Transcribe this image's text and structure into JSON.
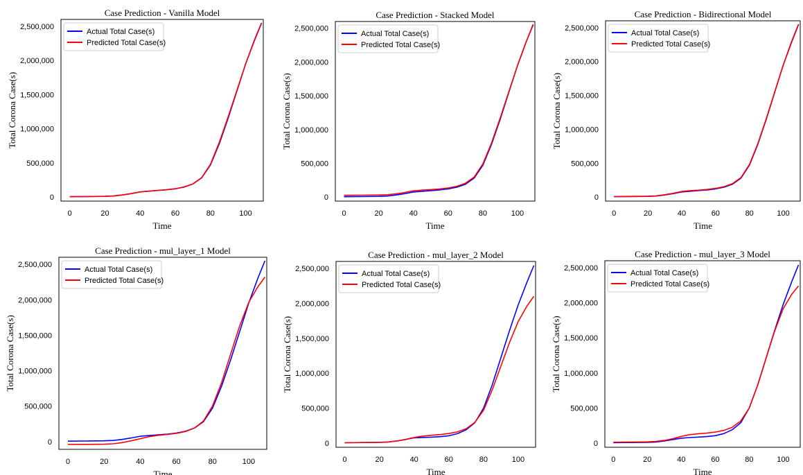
{
  "chart_data": [
    {
      "type": "line",
      "title": "Case Prediction - Vanilla Model",
      "xlabel": "Time",
      "ylabel": "Total Corona Case(s)",
      "xlim": [
        -5,
        110
      ],
      "ylim": [
        -60000,
        2600000
      ],
      "x_ticks": [
        0,
        20,
        40,
        60,
        80,
        100
      ],
      "y_ticks": [
        0,
        500000,
        1000000,
        1500000,
        2000000,
        2500000
      ],
      "y_tick_labels": [
        "0",
        "500,000",
        "1,000,000",
        "1,500,000",
        "2,000,000",
        "2,500,000"
      ],
      "x": [
        0,
        10,
        20,
        25,
        30,
        35,
        40,
        45,
        50,
        55,
        60,
        65,
        70,
        75,
        80,
        85,
        90,
        95,
        100,
        105,
        109
      ],
      "series": [
        {
          "name": "Actual Total Case(s)",
          "color": "#0000ff",
          "values": [
            5000,
            7000,
            10000,
            15000,
            30000,
            50000,
            75000,
            85000,
            95000,
            105000,
            120000,
            145000,
            190000,
            280000,
            470000,
            780000,
            1150000,
            1550000,
            1950000,
            2300000,
            2550000
          ]
        },
        {
          "name": "Predicted Total Case(s)",
          "color": "#ff0000",
          "values": [
            4000,
            6000,
            9000,
            14000,
            29000,
            50000,
            74000,
            86000,
            96000,
            106000,
            122000,
            148000,
            192000,
            283000,
            480000,
            800000,
            1170000,
            1560000,
            1950000,
            2290000,
            2545000
          ]
        }
      ],
      "legend": "top-left",
      "grid": false
    },
    {
      "type": "line",
      "title": "Case Prediction - Stacked Model",
      "xlabel": "Time",
      "ylabel": "Total Corona Case(s)",
      "xlim": [
        -5,
        110
      ],
      "ylim": [
        -60000,
        2600000
      ],
      "x_ticks": [
        0,
        20,
        40,
        60,
        80,
        100
      ],
      "y_ticks": [
        0,
        500000,
        1000000,
        1500000,
        2000000,
        2500000
      ],
      "y_tick_labels": [
        "0",
        "500,000",
        "1,000,000",
        "1,500,000",
        "2,000,000",
        "2,500,000"
      ],
      "x": [
        0,
        10,
        20,
        25,
        30,
        35,
        40,
        45,
        50,
        55,
        60,
        65,
        70,
        75,
        80,
        85,
        90,
        95,
        100,
        105,
        109
      ],
      "series": [
        {
          "name": "Actual Total Case(s)",
          "color": "#0000ff",
          "values": [
            5000,
            7000,
            10000,
            15000,
            30000,
            50000,
            75000,
            85000,
            95000,
            105000,
            120000,
            145000,
            190000,
            280000,
            470000,
            780000,
            1150000,
            1550000,
            1950000,
            2300000,
            2550000
          ]
        },
        {
          "name": "Predicted Total Case(s)",
          "color": "#ff0000",
          "values": [
            25000,
            27000,
            30000,
            35000,
            48000,
            68000,
            92000,
            102000,
            110000,
            120000,
            135000,
            160000,
            205000,
            295000,
            490000,
            800000,
            1170000,
            1560000,
            1950000,
            2300000,
            2560000
          ]
        }
      ],
      "legend": "top-left",
      "grid": false
    },
    {
      "type": "line",
      "title": "Case Prediction - Bidirectional Model",
      "xlabel": "Time",
      "ylabel": "Total Corona Case(s)",
      "xlim": [
        -5,
        110
      ],
      "ylim": [
        -60000,
        2600000
      ],
      "x_ticks": [
        0,
        20,
        40,
        60,
        80,
        100
      ],
      "y_ticks": [
        0,
        500000,
        1000000,
        1500000,
        2000000,
        2500000
      ],
      "y_tick_labels": [
        "0",
        "500,000",
        "1,000,000",
        "1,500,000",
        "2,000,000",
        "2,500,000"
      ],
      "x": [
        0,
        10,
        20,
        25,
        30,
        35,
        40,
        45,
        50,
        55,
        60,
        65,
        70,
        75,
        80,
        85,
        90,
        95,
        100,
        105,
        109
      ],
      "series": [
        {
          "name": "Actual Total Case(s)",
          "color": "#0000ff",
          "values": [
            5000,
            7000,
            10000,
            15000,
            30000,
            50000,
            75000,
            85000,
            95000,
            105000,
            120000,
            145000,
            190000,
            280000,
            470000,
            780000,
            1150000,
            1550000,
            1950000,
            2300000,
            2550000
          ]
        },
        {
          "name": "Predicted Total Case(s)",
          "color": "#ff0000",
          "values": [
            8000,
            10000,
            13000,
            18000,
            34000,
            56000,
            82000,
            94000,
            102000,
            112000,
            128000,
            153000,
            198000,
            288000,
            480000,
            790000,
            1160000,
            1555000,
            1950000,
            2290000,
            2545000
          ]
        }
      ],
      "legend": "top-left",
      "grid": false
    },
    {
      "type": "line",
      "title": "Case Prediction - mul_layer_1 Model",
      "xlabel": "Time",
      "ylabel": "Total Corona Case(s)",
      "xlim": [
        -5,
        110
      ],
      "ylim": [
        -110000,
        2600000
      ],
      "x_ticks": [
        0,
        20,
        40,
        60,
        80,
        100
      ],
      "y_ticks": [
        0,
        500000,
        1000000,
        1500000,
        2000000,
        2500000
      ],
      "y_tick_labels": [
        "0",
        "500,000",
        "1,000,000",
        "1,500,000",
        "2,000,000",
        "2,500,000"
      ],
      "x": [
        0,
        10,
        20,
        25,
        30,
        35,
        40,
        45,
        50,
        55,
        60,
        65,
        70,
        75,
        80,
        85,
        90,
        95,
        100,
        105,
        109
      ],
      "series": [
        {
          "name": "Actual Total Case(s)",
          "color": "#0000ff",
          "values": [
            5000,
            7000,
            10000,
            15000,
            30000,
            50000,
            75000,
            85000,
            95000,
            105000,
            120000,
            145000,
            190000,
            280000,
            470000,
            780000,
            1150000,
            1550000,
            1950000,
            2300000,
            2550000
          ]
        },
        {
          "name": "Predicted Total Case(s)",
          "color": "#ff0000",
          "values": [
            -40000,
            -40000,
            -38000,
            -32000,
            -15000,
            10000,
            40000,
            70000,
            88000,
            100000,
            115000,
            140000,
            190000,
            290000,
            500000,
            830000,
            1230000,
            1630000,
            1960000,
            2180000,
            2320000
          ]
        }
      ],
      "legend": "top-left",
      "grid": false
    },
    {
      "type": "line",
      "title": "Case Prediction - mul_layer_2 Model",
      "xlabel": "Time",
      "ylabel": "Total Corona Case(s)",
      "xlim": [
        -5,
        110
      ],
      "ylim": [
        -60000,
        2600000
      ],
      "x_ticks": [
        0,
        20,
        40,
        60,
        80,
        100
      ],
      "y_ticks": [
        0,
        500000,
        1000000,
        1500000,
        2000000,
        2500000
      ],
      "y_tick_labels": [
        "0",
        "500,000",
        "1,000,000",
        "1,500,000",
        "2,000,000",
        "2,500,000"
      ],
      "x": [
        0,
        10,
        20,
        25,
        30,
        35,
        40,
        45,
        50,
        55,
        60,
        65,
        70,
        75,
        80,
        85,
        90,
        95,
        100,
        105,
        109
      ],
      "series": [
        {
          "name": "Actual Total Case(s)",
          "color": "#0000ff",
          "values": [
            5000,
            7000,
            10000,
            15000,
            30000,
            50000,
            75000,
            80000,
            85000,
            92000,
            105000,
            135000,
            190000,
            290000,
            500000,
            830000,
            1220000,
            1610000,
            1980000,
            2300000,
            2540000
          ]
        },
        {
          "name": "Predicted Total Case(s)",
          "color": "#ff0000",
          "values": [
            5000,
            7000,
            10000,
            15000,
            30000,
            52000,
            80000,
            100000,
            112000,
            122000,
            137000,
            160000,
            205000,
            295000,
            470000,
            760000,
            1100000,
            1440000,
            1740000,
            1960000,
            2100000
          ]
        }
      ],
      "legend": "top-left",
      "grid": false
    },
    {
      "type": "line",
      "title": "Case Prediction - mul_layer_3 Model",
      "xlabel": "Time",
      "ylabel": "Total Corona Case(s)",
      "xlim": [
        -5,
        110
      ],
      "ylim": [
        -60000,
        2600000
      ],
      "x_ticks": [
        0,
        20,
        40,
        60,
        80,
        100
      ],
      "y_ticks": [
        0,
        500000,
        1000000,
        1500000,
        2000000,
        2500000
      ],
      "y_tick_labels": [
        "0",
        "500,000",
        "1,000,000",
        "1,500,000",
        "2,000,000",
        "2,500,000"
      ],
      "x": [
        0,
        10,
        20,
        25,
        30,
        35,
        40,
        45,
        50,
        55,
        60,
        65,
        70,
        75,
        80,
        85,
        90,
        95,
        100,
        105,
        109
      ],
      "series": [
        {
          "name": "Actual Total Case(s)",
          "color": "#0000ff",
          "values": [
            5000,
            7000,
            10000,
            15000,
            30000,
            50000,
            70000,
            78000,
            85000,
            92000,
            105000,
            135000,
            190000,
            290000,
            500000,
            830000,
            1220000,
            1610000,
            1980000,
            2300000,
            2540000
          ]
        },
        {
          "name": "Predicted Total Case(s)",
          "color": "#ff0000",
          "values": [
            12000,
            14000,
            17000,
            24000,
            38000,
            62000,
            95000,
            120000,
            132000,
            142000,
            157000,
            180000,
            225000,
            315000,
            500000,
            830000,
            1220000,
            1600000,
            1920000,
            2120000,
            2240000
          ]
        }
      ],
      "legend": "top-left",
      "grid": false
    }
  ]
}
